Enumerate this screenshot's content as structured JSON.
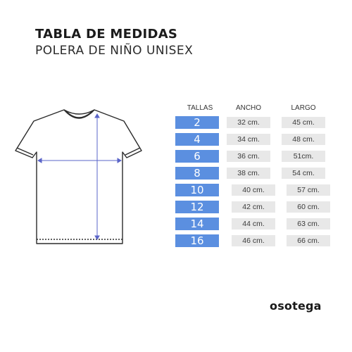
{
  "header": {
    "title": "TABLA DE MEDIDAS",
    "subtitle": "POLERA DE NIÑO UNISEX"
  },
  "table": {
    "columns": [
      "TALLAS",
      "ANCHO",
      "LARGO"
    ],
    "rows": [
      {
        "talla": "2",
        "ancho": "32 cm.",
        "largo": "45 cm."
      },
      {
        "talla": "4",
        "ancho": "34 cm.",
        "largo": "48 cm."
      },
      {
        "talla": "6",
        "ancho": "36 cm.",
        "largo": "51cm."
      },
      {
        "talla": "8",
        "ancho": "38 cm.",
        "largo": "54 cm."
      },
      {
        "talla": "10",
        "ancho": "40 cm.",
        "largo": "57 cm."
      },
      {
        "talla": "12",
        "ancho": "42 cm.",
        "largo": "60 cm."
      },
      {
        "talla": "14",
        "ancho": "44 cm.",
        "largo": "63 cm."
      },
      {
        "talla": "16",
        "ancho": "46 cm.",
        "largo": "66 cm."
      }
    ]
  },
  "brand": "osotega",
  "colors": {
    "size_cell": "#5b8fe0",
    "value_cell": "#e8e8e8",
    "measure_line": "#5a64c8"
  },
  "illustration": "tshirt-diagram"
}
